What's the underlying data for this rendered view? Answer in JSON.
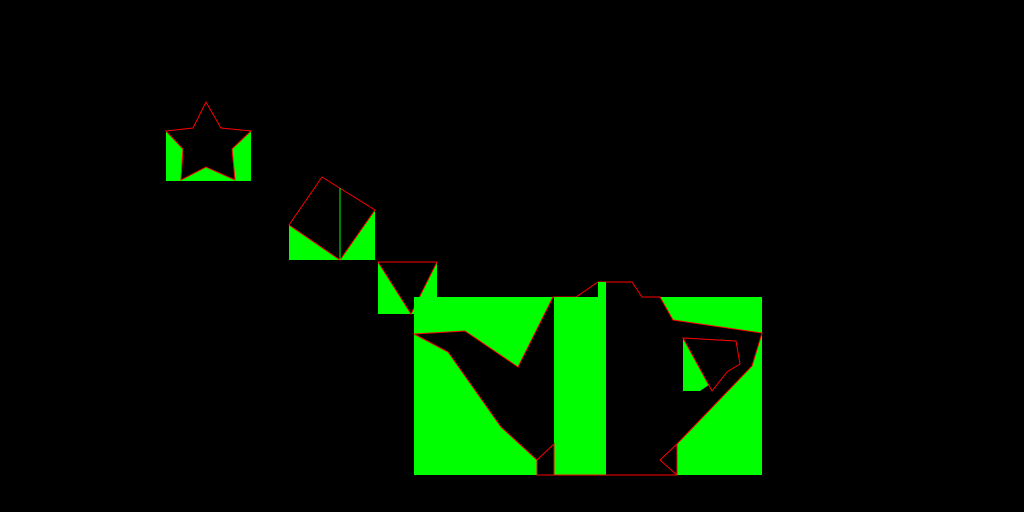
{
  "colors": {
    "background": "#000000",
    "fill": "#00ff00",
    "outline": "#ff0000"
  },
  "pieces": [
    {
      "name": "star-piece",
      "shape": "star"
    },
    {
      "name": "pentagon-piece",
      "shape": "house"
    },
    {
      "name": "triangle-piece",
      "shape": "inverted-triangle"
    },
    {
      "name": "teapot-piece",
      "shape": "teapot"
    }
  ]
}
